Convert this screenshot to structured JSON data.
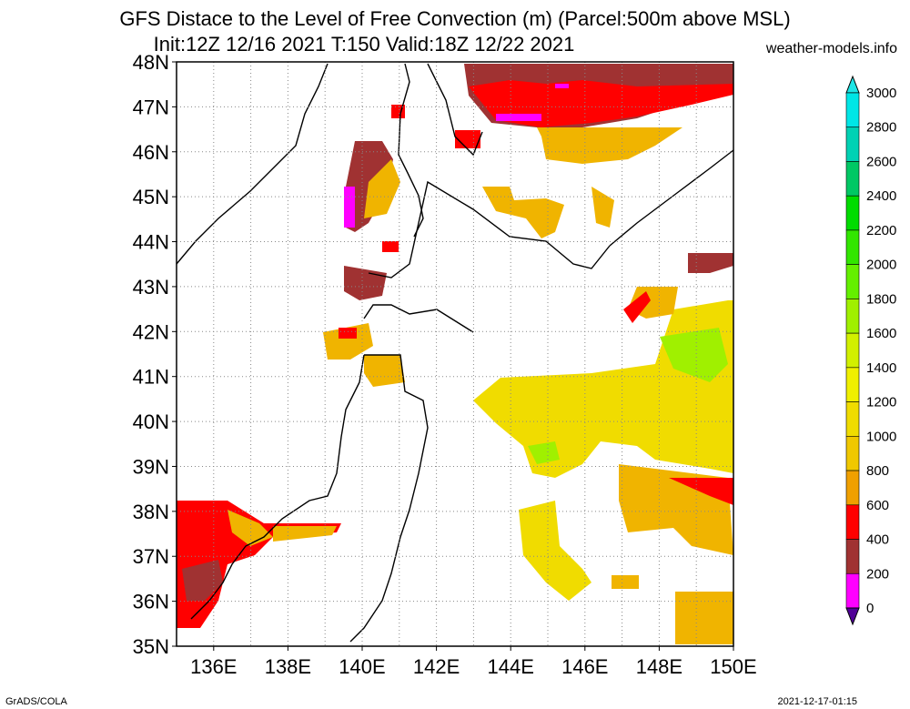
{
  "title_line1": "GFS Distace to the Level of Free Convection (m) (Parcel:500m above MSL)",
  "title_line2": "Init:12Z 12/16 2021 T:150 Valid:18Z 12/22 2021",
  "site": "weather-models.info",
  "footer_left": "GrADS/COLA",
  "footer_right": "2021-12-17-01:15",
  "map": {
    "lat_labels": [
      "48N",
      "47N",
      "46N",
      "45N",
      "44N",
      "43N",
      "42N",
      "41N",
      "40N",
      "39N",
      "38N",
      "37N",
      "36N",
      "35N"
    ],
    "lon_labels": [
      "136E",
      "138E",
      "140E",
      "142E",
      "144E",
      "146E",
      "148E",
      "150E"
    ],
    "lat_range": [
      35,
      48
    ],
    "lon_range": [
      135,
      150
    ]
  },
  "colorbar": {
    "levels": [
      "3000",
      "2800",
      "2600",
      "2400",
      "2200",
      "2000",
      "1800",
      "1600",
      "1400",
      "1200",
      "1000",
      "800",
      "600",
      "400",
      "200",
      "0"
    ],
    "colors": [
      "#00e6e6",
      "#00d2b4",
      "#00c864",
      "#00dc00",
      "#32e600",
      "#64f000",
      "#a0f000",
      "#d2f000",
      "#f0f000",
      "#f0dc00",
      "#f0c800",
      "#f0a000",
      "#ff0000",
      "#a03232",
      "#ff00ff",
      "#500096"
    ],
    "top_color": "#1ee6e6",
    "bottom_color": "#500096"
  }
}
